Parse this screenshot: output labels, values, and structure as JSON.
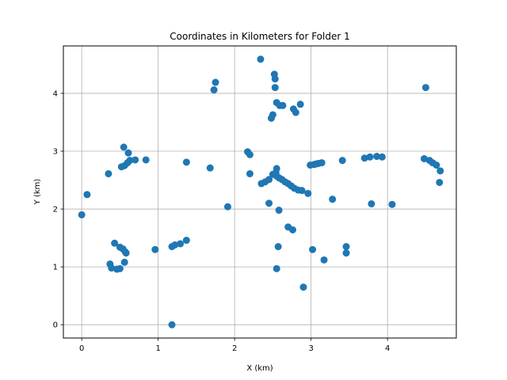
{
  "chart_data": {
    "type": "scatter",
    "title": "Coordinates in Kilometers for Folder 1",
    "xlabel": "X (km)",
    "ylabel": "Y (km)",
    "xlim": [
      -0.24,
      4.9
    ],
    "ylim": [
      -0.23,
      4.82
    ],
    "xticks": [
      0,
      1,
      2,
      3,
      4
    ],
    "yticks": [
      0,
      1,
      2,
      3,
      4
    ],
    "grid": true,
    "marker_color": "#1f77b4",
    "series": [
      {
        "points": [
          [
            0.0,
            1.9
          ],
          [
            0.07,
            2.25
          ],
          [
            0.35,
            2.61
          ],
          [
            0.37,
            1.05
          ],
          [
            0.39,
            0.98
          ],
          [
            0.43,
            1.41
          ],
          [
            0.46,
            0.96
          ],
          [
            0.5,
            0.97
          ],
          [
            0.5,
            1.34
          ],
          [
            0.52,
            2.73
          ],
          [
            0.54,
            1.31
          ],
          [
            0.55,
            3.07
          ],
          [
            0.56,
            1.08
          ],
          [
            0.56,
            2.75
          ],
          [
            0.57,
            1.26
          ],
          [
            0.58,
            1.24
          ],
          [
            0.6,
            2.8
          ],
          [
            0.61,
            2.97
          ],
          [
            0.63,
            2.84
          ],
          [
            0.7,
            2.85
          ],
          [
            0.84,
            2.85
          ],
          [
            0.96,
            1.3
          ],
          [
            1.18,
            0.0
          ],
          [
            1.18,
            1.35
          ],
          [
            1.22,
            1.38
          ],
          [
            1.29,
            1.4
          ],
          [
            1.37,
            2.81
          ],
          [
            1.37,
            1.46
          ],
          [
            1.68,
            2.71
          ],
          [
            1.73,
            4.06
          ],
          [
            1.75,
            4.19
          ],
          [
            1.91,
            2.04
          ],
          [
            2.17,
            2.99
          ],
          [
            2.2,
            2.94
          ],
          [
            2.2,
            2.61
          ],
          [
            2.34,
            4.59
          ],
          [
            2.35,
            2.44
          ],
          [
            2.4,
            2.47
          ],
          [
            2.45,
            2.1
          ],
          [
            2.45,
            2.51
          ],
          [
            2.48,
            3.57
          ],
          [
            2.5,
            3.63
          ],
          [
            2.5,
            2.6
          ],
          [
            2.52,
            4.33
          ],
          [
            2.53,
            4.25
          ],
          [
            2.53,
            4.1
          ],
          [
            2.54,
            2.63
          ],
          [
            2.55,
            3.84
          ],
          [
            2.55,
            2.7
          ],
          [
            2.55,
            2.57
          ],
          [
            2.55,
            0.97
          ],
          [
            2.57,
            1.35
          ],
          [
            2.58,
            1.98
          ],
          [
            2.58,
            2.54
          ],
          [
            2.59,
            3.79
          ],
          [
            2.62,
            2.51
          ],
          [
            2.63,
            3.79
          ],
          [
            2.66,
            2.47
          ],
          [
            2.7,
            2.44
          ],
          [
            2.7,
            1.69
          ],
          [
            2.74,
            2.4
          ],
          [
            2.76,
            1.64
          ],
          [
            2.77,
            3.73
          ],
          [
            2.78,
            2.36
          ],
          [
            2.8,
            3.67
          ],
          [
            2.83,
            2.33
          ],
          [
            2.86,
            3.81
          ],
          [
            2.88,
            2.32
          ],
          [
            2.9,
            0.65
          ],
          [
            2.96,
            2.27
          ],
          [
            2.99,
            2.76
          ],
          [
            3.02,
            1.3
          ],
          [
            3.04,
            2.77
          ],
          [
            3.07,
            2.78
          ],
          [
            3.1,
            2.79
          ],
          [
            3.14,
            2.8
          ],
          [
            3.17,
            1.12
          ],
          [
            3.28,
            2.17
          ],
          [
            3.41,
            2.84
          ],
          [
            3.46,
            1.35
          ],
          [
            3.46,
            1.24
          ],
          [
            3.7,
            2.88
          ],
          [
            3.77,
            2.9
          ],
          [
            3.79,
            2.09
          ],
          [
            3.86,
            2.91
          ],
          [
            3.93,
            2.9
          ],
          [
            4.06,
            2.08
          ],
          [
            4.48,
            2.87
          ],
          [
            4.5,
            4.1
          ],
          [
            4.55,
            2.84
          ],
          [
            4.59,
            2.8
          ],
          [
            4.64,
            2.76
          ],
          [
            4.68,
            2.46
          ],
          [
            4.69,
            2.66
          ]
        ]
      }
    ]
  }
}
